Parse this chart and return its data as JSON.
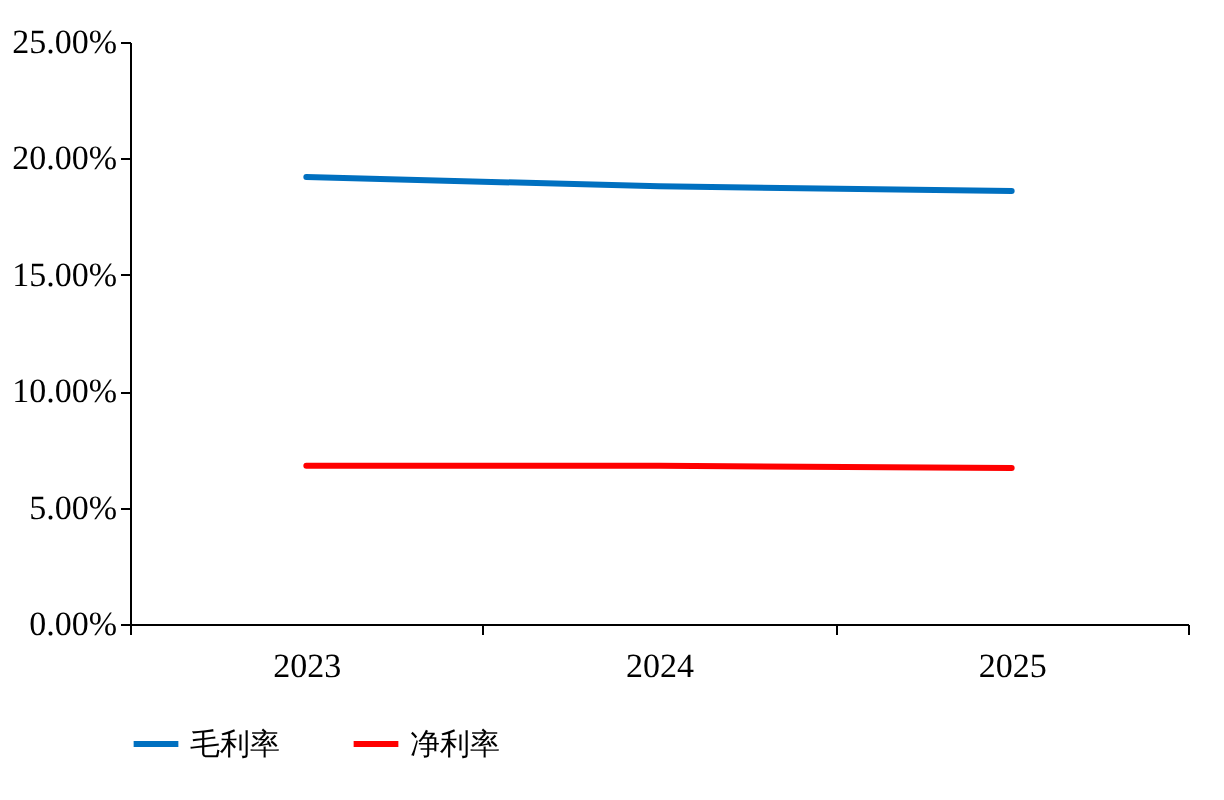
{
  "chart_data": {
    "type": "line",
    "categories": [
      "2023",
      "2024",
      "2025"
    ],
    "series": [
      {
        "name": "毛利率",
        "color": "#0070c0",
        "values": [
          19.2,
          18.8,
          18.6
        ]
      },
      {
        "name": "净利率",
        "color": "#ff0000",
        "values": [
          6.8,
          6.8,
          6.7
        ]
      }
    ],
    "ylim": [
      0,
      25
    ],
    "yticks": [
      {
        "value": 0,
        "label": "0.00%"
      },
      {
        "value": 5,
        "label": "5.00%"
      },
      {
        "value": 10,
        "label": "10.00%"
      },
      {
        "value": 15,
        "label": "15.00%"
      },
      {
        "value": 20,
        "label": "20.00%"
      },
      {
        "value": 25,
        "label": "25.00%"
      }
    ],
    "grid": false,
    "legend": "bottom",
    "marker": "none",
    "line_style": "solid"
  }
}
